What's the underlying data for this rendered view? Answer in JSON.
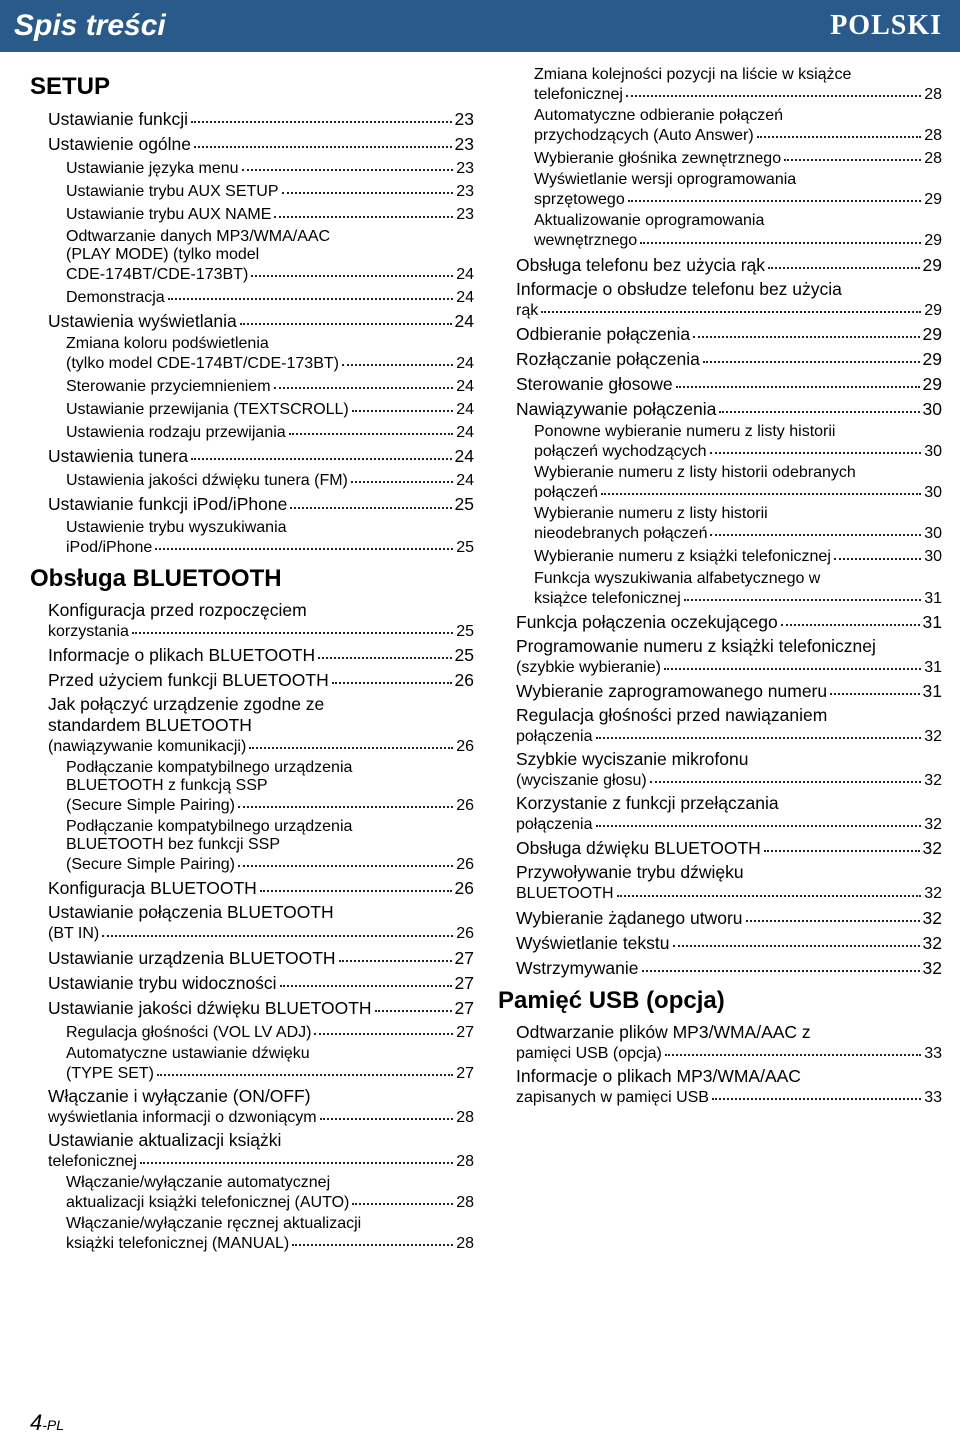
{
  "header": {
    "left": "Spis treści",
    "right": "POLSKI"
  },
  "colors": {
    "header_bg": "#2a5a8a",
    "header_fg": "#ffffff",
    "text": "#111111"
  },
  "page_number": {
    "num": "4",
    "suffix": "-PL"
  },
  "left": {
    "sections": [
      {
        "title": "SETUP",
        "items": [
          {
            "lvl": 1,
            "label": "Ustawianie funkcji",
            "pg": "23"
          },
          {
            "lvl": 1,
            "label": "Ustawienie ogólne",
            "pg": "23"
          },
          {
            "lvl": 2,
            "label": "Ustawianie języka menu",
            "pg": "23"
          },
          {
            "lvl": 2,
            "label": "Ustawianie trybu AUX SETUP",
            "pg": "23"
          },
          {
            "lvl": 2,
            "label": "Ustawianie trybu AUX NAME",
            "pg": "23"
          },
          {
            "lvl": 2,
            "label_lines": [
              "Odtwarzanie danych MP3/WMA/AAC",
              "(PLAY MODE) (tylko model",
              "CDE-174BT/CDE-173BT)"
            ],
            "pg": "24"
          },
          {
            "lvl": 2,
            "label": "Demonstracja",
            "pg": "24"
          },
          {
            "lvl": 1,
            "label": "Ustawienia wyświetlania",
            "pg": "24"
          },
          {
            "lvl": 2,
            "label_lines": [
              "Zmiana koloru podświetlenia",
              "(tylko model CDE-174BT/CDE-173BT)"
            ],
            "pg": "24"
          },
          {
            "lvl": 2,
            "label": "Sterowanie przyciemnieniem",
            "pg": "24"
          },
          {
            "lvl": 2,
            "label": "Ustawianie przewijania (TEXTSCROLL)",
            "pg": "24"
          },
          {
            "lvl": 2,
            "label": "Ustawienia rodzaju przewijania",
            "pg": "24"
          },
          {
            "lvl": 1,
            "label": "Ustawienia tunera",
            "pg": "24"
          },
          {
            "lvl": 2,
            "label": "Ustawienia jakości dźwięku tunera (FM)",
            "pg": "24"
          },
          {
            "lvl": 1,
            "label": "Ustawianie funkcji iPod/iPhone",
            "pg": "25"
          },
          {
            "lvl": 2,
            "label_lines": [
              "Ustawienie trybu wyszukiwania",
              "iPod/iPhone"
            ],
            "pg": "25"
          }
        ]
      },
      {
        "title": "Obsługa BLUETOOTH",
        "items": [
          {
            "lvl": 1,
            "label_lines": [
              "Konfiguracja przed rozpoczęciem",
              "korzystania"
            ],
            "pg": "25"
          },
          {
            "lvl": 1,
            "label": "Informacje o plikach BLUETOOTH",
            "pg": "25"
          },
          {
            "lvl": 1,
            "label": "Przed użyciem funkcji BLUETOOTH",
            "pg": "26"
          },
          {
            "lvl": 1,
            "label_lines": [
              "Jak połączyć urządzenie zgodne ze",
              "standardem BLUETOOTH",
              "(nawiązywanie komunikacji)"
            ],
            "pg": "26"
          },
          {
            "lvl": 2,
            "label_lines": [
              "Podłączanie kompatybilnego urządzenia",
              "BLUETOOTH z funkcją SSP",
              "(Secure Simple Pairing)"
            ],
            "pg": "26"
          },
          {
            "lvl": 2,
            "label_lines": [
              "Podłączanie kompatybilnego urządzenia",
              "BLUETOOTH bez funkcji SSP",
              "(Secure Simple Pairing)"
            ],
            "pg": "26"
          },
          {
            "lvl": 1,
            "label": "Konfiguracja BLUETOOTH",
            "pg": "26"
          },
          {
            "lvl": 1,
            "label_lines": [
              "Ustawianie połączenia BLUETOOTH",
              "(BT IN)"
            ],
            "pg": "26"
          },
          {
            "lvl": 1,
            "label": "Ustawianie urządzenia BLUETOOTH",
            "pg": "27"
          },
          {
            "lvl": 1,
            "label": "Ustawianie trybu widoczności",
            "pg": "27"
          },
          {
            "lvl": 1,
            "label": "Ustawianie jakości dźwięku BLUETOOTH",
            "pg": "27"
          },
          {
            "lvl": 2,
            "label": "Regulacja głośności (VOL LV ADJ)",
            "pg": "27"
          },
          {
            "lvl": 2,
            "label_lines": [
              "Automatyczne ustawianie dźwięku",
              "(TYPE SET)"
            ],
            "pg": "27"
          },
          {
            "lvl": 1,
            "label_lines": [
              "Włączanie i wyłączanie (ON/OFF)",
              "wyświetlania informacji o dzwoniącym"
            ],
            "pg": "28"
          },
          {
            "lvl": 1,
            "label_lines": [
              "Ustawianie aktualizacji książki",
              "telefonicznej"
            ],
            "pg": "28"
          },
          {
            "lvl": 2,
            "label_lines": [
              "Włączanie/wyłączanie automatycznej",
              "aktualizacji książki telefonicznej (AUTO)"
            ],
            "pg": "28"
          },
          {
            "lvl": 2,
            "label_lines": [
              "Włączanie/wyłączanie ręcznej aktualizacji",
              "książki telefonicznej (MANUAL)"
            ],
            "pg": "28"
          }
        ]
      }
    ]
  },
  "right": {
    "sections": [
      {
        "title": "",
        "items": [
          {
            "lvl": 2,
            "label_lines": [
              "Zmiana kolejności pozycji na liście w książce",
              "telefonicznej"
            ],
            "pg": "28"
          },
          {
            "lvl": 2,
            "label_lines": [
              "Automatyczne odbieranie połączeń",
              "przychodzących (Auto Answer)"
            ],
            "pg": "28"
          },
          {
            "lvl": 2,
            "label": "Wybieranie głośnika zewnętrznego",
            "pg": "28"
          },
          {
            "lvl": 2,
            "label_lines": [
              "Wyświetlanie wersji oprogramowania",
              "sprzętowego"
            ],
            "pg": "29"
          },
          {
            "lvl": 2,
            "label_lines": [
              "Aktualizowanie oprogramowania",
              "wewnętrznego"
            ],
            "pg": "29"
          },
          {
            "lvl": 1,
            "label": "Obsługa telefonu bez użycia rąk",
            "pg": "29"
          },
          {
            "lvl": 1,
            "label_lines": [
              "Informacje o obsłudze telefonu bez użycia",
              "rąk"
            ],
            "pg": "29"
          },
          {
            "lvl": 1,
            "label": "Odbieranie połączenia",
            "pg": "29"
          },
          {
            "lvl": 1,
            "label": "Rozłączanie połączenia",
            "pg": "29"
          },
          {
            "lvl": 1,
            "label": "Sterowanie głosowe",
            "pg": "29"
          },
          {
            "lvl": 1,
            "label": "Nawiązywanie połączenia",
            "pg": "30"
          },
          {
            "lvl": 2,
            "label_lines": [
              "Ponowne wybieranie numeru z listy historii",
              "połączeń wychodzących"
            ],
            "pg": "30"
          },
          {
            "lvl": 2,
            "label_lines": [
              "Wybieranie numeru z listy historii odebranych",
              "połączeń"
            ],
            "pg": "30"
          },
          {
            "lvl": 2,
            "label_lines": [
              "Wybieranie numeru z listy historii",
              "nieodebranych połączeń"
            ],
            "pg": "30"
          },
          {
            "lvl": 2,
            "label": "Wybieranie numeru z książki telefonicznej",
            "pg": "30"
          },
          {
            "lvl": 2,
            "label_lines": [
              "Funkcja wyszukiwania alfabetycznego w",
              "książce telefonicznej"
            ],
            "pg": "31"
          },
          {
            "lvl": 1,
            "label": "Funkcja połączenia oczekującego",
            "pg": "31"
          },
          {
            "lvl": 1,
            "label_lines": [
              "Programowanie numeru z książki telefonicznej",
              "(szybkie wybieranie)"
            ],
            "pg": "31"
          },
          {
            "lvl": 1,
            "label": "Wybieranie zaprogramowanego numeru",
            "pg": "31"
          },
          {
            "lvl": 1,
            "label_lines": [
              "Regulacja głośności przed nawiązaniem",
              "połączenia"
            ],
            "pg": "32"
          },
          {
            "lvl": 1,
            "label_lines": [
              "Szybkie wyciszanie mikrofonu",
              "(wyciszanie głosu)"
            ],
            "pg": "32"
          },
          {
            "lvl": 1,
            "label_lines": [
              "Korzystanie z funkcji przełączania",
              "połączenia"
            ],
            "pg": "32"
          },
          {
            "lvl": 1,
            "label": "Obsługa dźwięku BLUETOOTH",
            "pg": "32"
          },
          {
            "lvl": 1,
            "label_lines": [
              "Przywoływanie trybu dźwięku",
              "BLUETOOTH"
            ],
            "pg": "32"
          },
          {
            "lvl": 1,
            "label": "Wybieranie żądanego utworu",
            "pg": "32"
          },
          {
            "lvl": 1,
            "label": "Wyświetlanie tekstu",
            "pg": "32"
          },
          {
            "lvl": 1,
            "label": "Wstrzymywanie",
            "pg": "32"
          }
        ]
      },
      {
        "title": "Pamięć USB (opcja)",
        "items": [
          {
            "lvl": 1,
            "label_lines": [
              "Odtwarzanie plików MP3/WMA/AAC z",
              "pamięci USB (opcja)"
            ],
            "pg": "33"
          },
          {
            "lvl": 1,
            "label_lines": [
              "Informacje o plikach MP3/WMA/AAC",
              "zapisanych w pamięci USB"
            ],
            "pg": "33"
          }
        ]
      }
    ]
  }
}
